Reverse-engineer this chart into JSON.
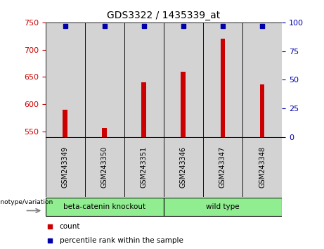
{
  "title": "GDS3322 / 1435339_at",
  "samples": [
    "GSM243349",
    "GSM243350",
    "GSM243351",
    "GSM243346",
    "GSM243347",
    "GSM243348"
  ],
  "counts": [
    590,
    556,
    640,
    660,
    720,
    636
  ],
  "percentile_ranks": [
    97,
    97,
    97,
    97,
    97,
    97
  ],
  "ylim_left": [
    540,
    750
  ],
  "ylim_right": [
    0,
    100
  ],
  "yticks_left": [
    550,
    600,
    650,
    700,
    750
  ],
  "yticks_right": [
    0,
    25,
    50,
    75,
    100
  ],
  "group1_label": "beta-catenin knockout",
  "group2_label": "wild type",
  "group1_indices": [
    0,
    1,
    2
  ],
  "group2_indices": [
    3,
    4,
    5
  ],
  "group_color": "#90EE90",
  "sample_box_color": "#D3D3D3",
  "bar_color": "#CC0000",
  "dot_color": "#0000AA",
  "bar_width": 0.12,
  "grid_color": "#000000",
  "bg_color": "#FFFFFF",
  "left_axis_color": "#CC0000",
  "right_axis_color": "#0000AA",
  "genotype_label": "genotype/variation",
  "legend_count": "count",
  "legend_percentile": "percentile rank within the sample",
  "title_fontsize": 10,
  "tick_fontsize": 8,
  "label_fontsize": 8
}
